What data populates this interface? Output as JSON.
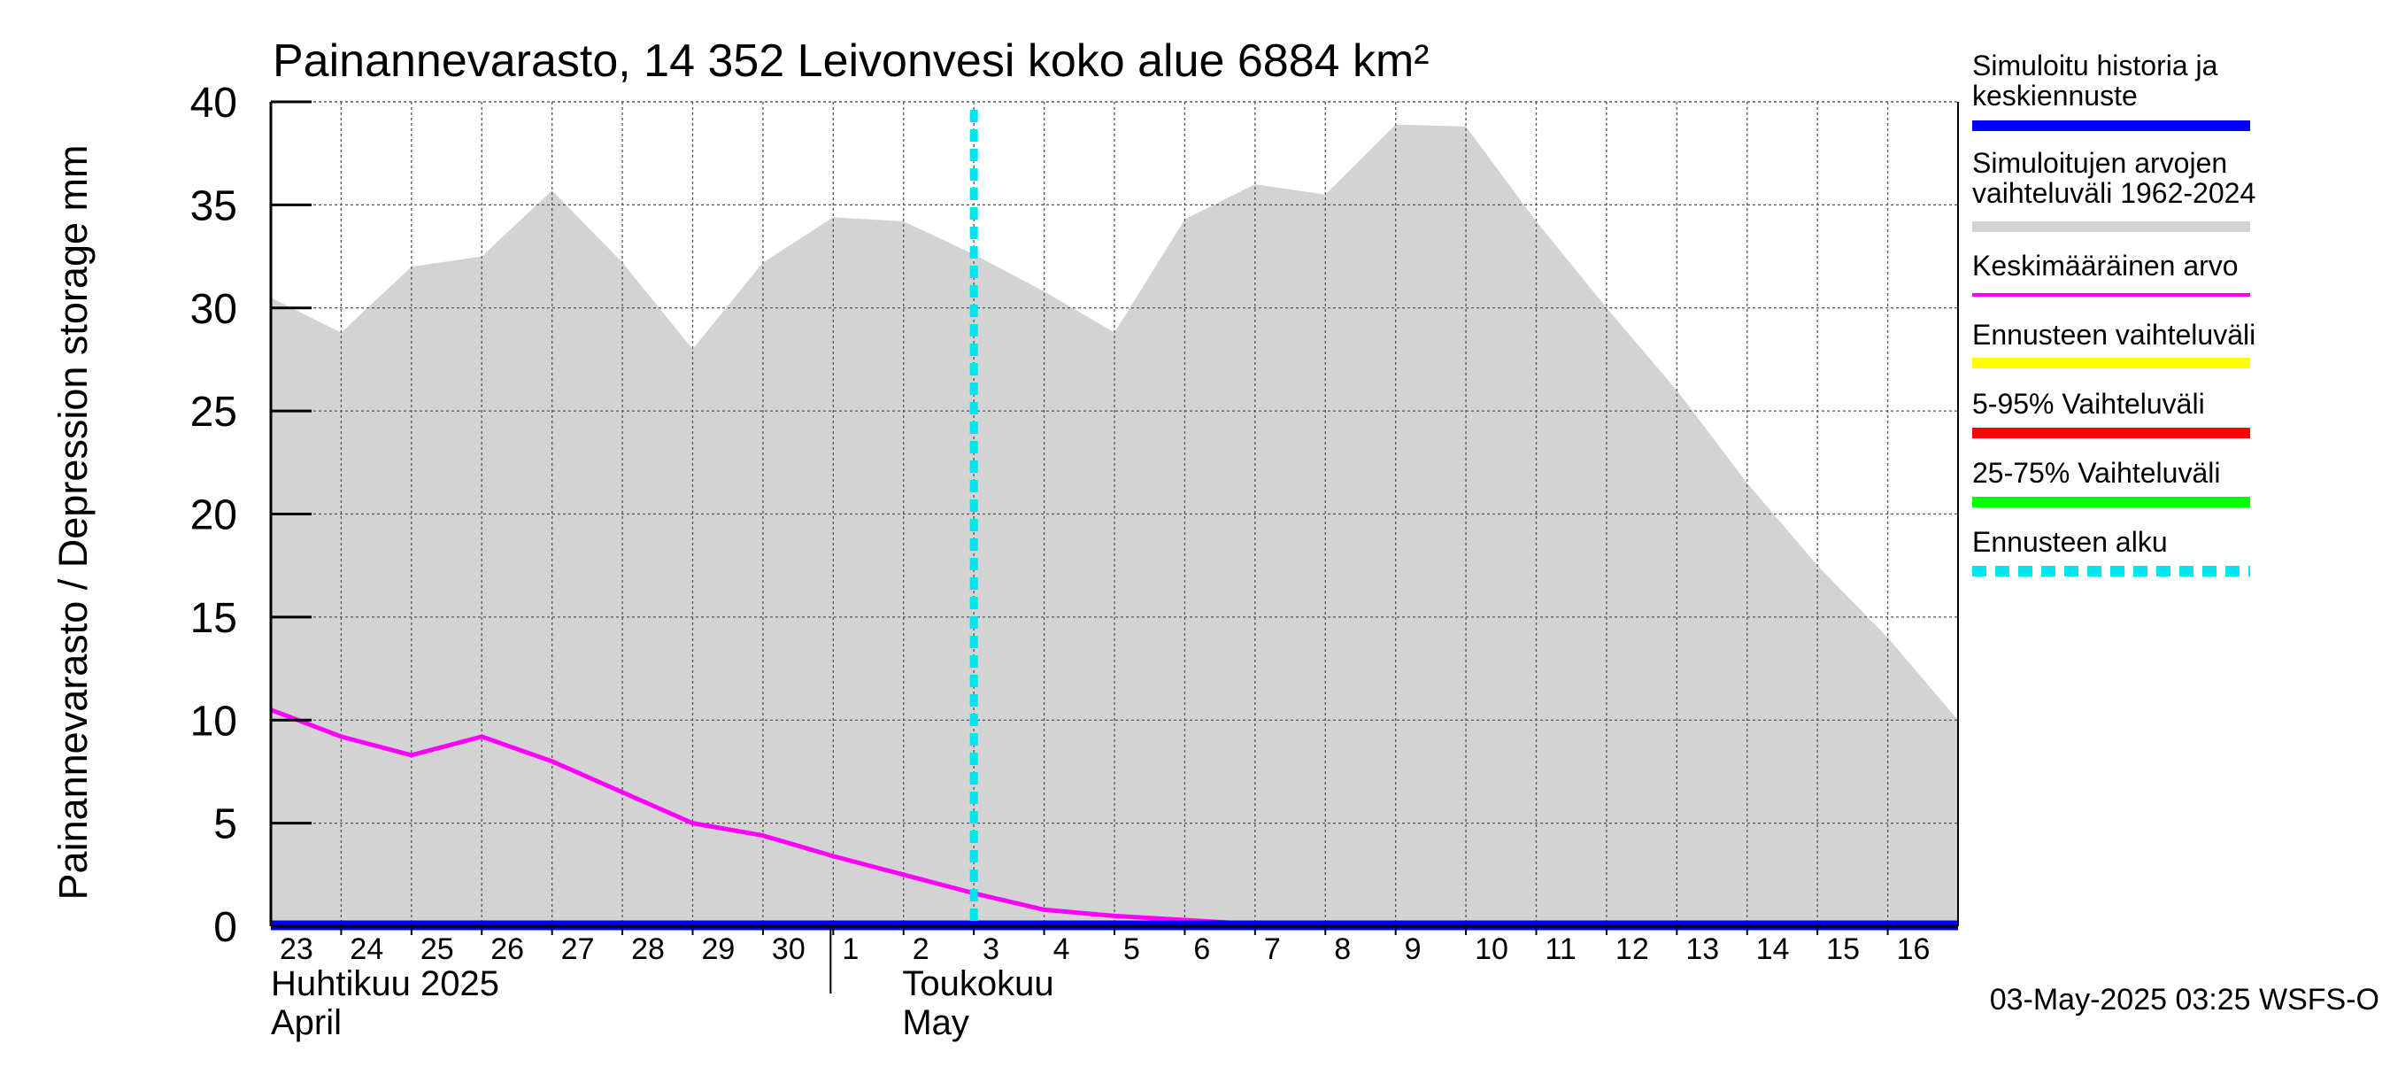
{
  "chart_data": {
    "type": "area",
    "title": "Painannevarasto, 14 352 Leivonvesi koko alue 6884 km²",
    "ylabel": "Painannevarasto / Depression storage    mm",
    "ylim": [
      0,
      40
    ],
    "yticks": [
      "0",
      "5",
      "10",
      "15",
      "20",
      "25",
      "30",
      "35",
      "40"
    ],
    "xlim": [
      0,
      24
    ],
    "grid": true,
    "days": [
      "23",
      "24",
      "25",
      "26",
      "27",
      "28",
      "29",
      "30",
      "1",
      "2",
      "3",
      "4",
      "5",
      "6",
      "7",
      "8",
      "9",
      "10",
      "11",
      "12",
      "13",
      "14",
      "15",
      "16"
    ],
    "month_labels": [
      {
        "line1": "Huhtikuu  2025",
        "line2": "April"
      },
      {
        "line1": "Toukokuu",
        "line2": "May"
      }
    ],
    "month_boundary_day": 8,
    "forecast_start_day": 10,
    "series": [
      {
        "name": "Simuloitujen arvojen vaihteluväli 1962-2024",
        "kind": "range",
        "color": "#d3d3d3",
        "x": [
          0,
          1,
          2,
          3,
          4,
          5,
          6,
          7,
          8,
          9,
          10,
          11,
          12,
          13,
          14,
          15,
          16,
          17,
          18,
          19,
          20,
          21,
          22,
          23,
          24
        ],
        "upper": [
          30.5,
          28.8,
          32.0,
          32.5,
          35.7,
          32.2,
          28.0,
          32.2,
          34.4,
          34.2,
          32.6,
          30.8,
          28.8,
          34.3,
          36.0,
          35.5,
          38.9,
          38.8,
          34.2,
          30.0,
          26.0,
          21.5,
          17.5,
          14.0,
          10.0
        ],
        "lower": [
          0,
          0,
          0,
          0,
          0,
          0,
          0,
          0,
          0,
          0,
          0,
          0,
          0,
          0,
          0,
          0,
          0,
          0,
          0,
          0,
          0,
          0,
          0,
          0,
          0
        ]
      },
      {
        "name": "Keskimääräinen arvo",
        "kind": "line",
        "color": "#ff00ff",
        "x": [
          0,
          1,
          2,
          3,
          4,
          5,
          6,
          7,
          8,
          9,
          10,
          11,
          12,
          13,
          14,
          15,
          16,
          17,
          18,
          19,
          20,
          21,
          22,
          23,
          24
        ],
        "y": [
          10.5,
          9.2,
          8.3,
          9.2,
          8.0,
          6.5,
          5.0,
          4.4,
          3.4,
          2.5,
          1.6,
          0.8,
          0.5,
          0.3,
          0.1,
          0.05,
          0.0,
          0.0,
          0.0,
          0.0,
          0.0,
          0.0,
          0.0,
          0.0,
          0.0
        ]
      },
      {
        "name": "Simuloitu historia ja keskiennuste",
        "kind": "line",
        "color": "#0000ff",
        "x": [
          0,
          24
        ],
        "y": [
          0,
          0
        ]
      }
    ],
    "legend_position": "right",
    "legend": [
      {
        "lines": [
          "Simuloitu historia ja",
          "keskiennuste"
        ],
        "color": "#0000ff",
        "style": "solid"
      },
      {
        "lines": [
          "Simuloitujen arvojen",
          "vaihteluväli 1962-2024"
        ],
        "color": "#d3d3d3",
        "style": "solid"
      },
      {
        "lines": [
          "Keskimääräinen arvo"
        ],
        "color": "#ff00ff",
        "style": "thin"
      },
      {
        "lines": [
          "Ennusteen vaihteluväli"
        ],
        "color": "#ffff00",
        "style": "solid"
      },
      {
        "lines": [
          "5-95% Vaihteluväli"
        ],
        "color": "#ff0000",
        "style": "solid"
      },
      {
        "lines": [
          "25-75% Vaihteluväli"
        ],
        "color": "#00ff00",
        "style": "solid"
      },
      {
        "lines": [
          "Ennusteen alku"
        ],
        "color": "#00e5ee",
        "style": "dashed"
      }
    ],
    "footer": "03-May-2025 03:25 WSFS-O"
  }
}
